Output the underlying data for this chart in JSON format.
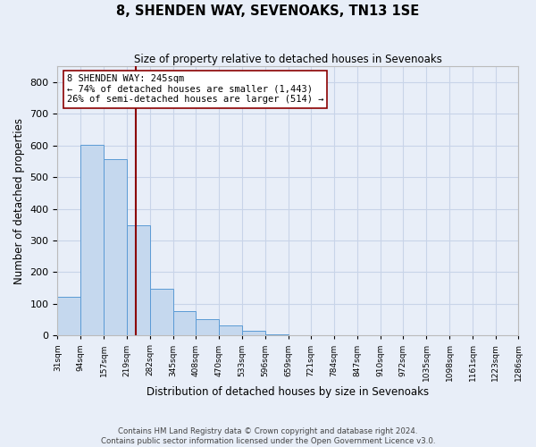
{
  "title": "8, SHENDEN WAY, SEVENOAKS, TN13 1SE",
  "subtitle": "Size of property relative to detached houses in Sevenoaks",
  "xlabel": "Distribution of detached houses by size in Sevenoaks",
  "ylabel": "Number of detached properties",
  "footer_line1": "Contains HM Land Registry data © Crown copyright and database right 2024.",
  "footer_line2": "Contains public sector information licensed under the Open Government Licence v3.0.",
  "bin_edges": [
    31,
    94,
    157,
    219,
    282,
    345,
    408,
    470,
    533,
    596,
    659,
    721,
    784,
    847,
    910,
    972,
    1035,
    1098,
    1161,
    1223,
    1286
  ],
  "bin_labels": [
    "31sqm",
    "94sqm",
    "157sqm",
    "219sqm",
    "282sqm",
    "345sqm",
    "408sqm",
    "470sqm",
    "533sqm",
    "596sqm",
    "659sqm",
    "721sqm",
    "784sqm",
    "847sqm",
    "910sqm",
    "972sqm",
    "1035sqm",
    "1098sqm",
    "1161sqm",
    "1223sqm",
    "1286sqm"
  ],
  "counts": [
    122,
    601,
    556,
    347,
    149,
    76,
    52,
    32,
    15,
    5,
    0,
    0,
    0,
    0,
    0,
    0,
    0,
    0,
    0,
    0
  ],
  "bar_color": "#c5d8ee",
  "bar_edge_color": "#5b9bd5",
  "property_size": 245,
  "property_label": "8 SHENDEN WAY: 245sqm",
  "annotation_line1": "← 74% of detached houses are smaller (1,443)",
  "annotation_line2": "26% of semi-detached houses are larger (514) →",
  "vline_color": "#8b0000",
  "annotation_box_color": "#ffffff",
  "annotation_box_edge_color": "#8b0000",
  "ylim": [
    0,
    850
  ],
  "yticks": [
    0,
    100,
    200,
    300,
    400,
    500,
    600,
    700,
    800
  ],
  "grid_color": "#c8d4e8",
  "background_color": "#e8eef8"
}
